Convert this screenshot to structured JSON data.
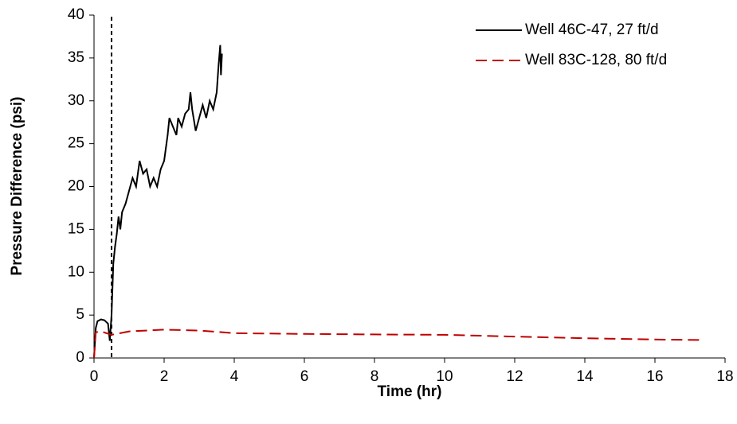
{
  "chart_data": {
    "type": "line",
    "xlabel": "Time (hr)",
    "ylabel": "Pressure Difference (psi)",
    "xlim": [
      0,
      18
    ],
    "xticks": [
      0,
      2,
      4,
      6,
      8,
      10,
      12,
      14,
      16,
      18
    ],
    "ylim": [
      0,
      40
    ],
    "yticks": [
      0,
      5,
      10,
      15,
      20,
      25,
      30,
      35,
      40
    ],
    "grid": false,
    "legend": "top-right",
    "reference_line_x": 0.5,
    "series": [
      {
        "name": "Well 46C-47, 27 ft/d",
        "color": "#000000",
        "dash": "solid",
        "x": [
          0,
          0.05,
          0.1,
          0.2,
          0.3,
          0.4,
          0.45,
          0.5,
          0.55,
          0.6,
          0.65,
          0.7,
          0.75,
          0.8,
          0.9,
          1.0,
          1.1,
          1.2,
          1.3,
          1.4,
          1.5,
          1.6,
          1.7,
          1.8,
          1.9,
          2.0,
          2.1,
          2.15,
          2.25,
          2.35,
          2.4,
          2.5,
          2.6,
          2.7,
          2.75,
          2.8,
          2.9,
          3.0,
          3.1,
          3.2,
          3.3,
          3.4,
          3.5,
          3.55,
          3.6,
          3.62,
          3.65
        ],
        "values": [
          0,
          3.5,
          4.3,
          4.5,
          4.4,
          4.0,
          2,
          5,
          11,
          13,
          14.5,
          16.5,
          15,
          17,
          18,
          19.5,
          21,
          20,
          23,
          21.5,
          22,
          20,
          21,
          20,
          22,
          23,
          26,
          28,
          27,
          26,
          28,
          27,
          28.5,
          29,
          31,
          29,
          26.5,
          28,
          29.5,
          28,
          30,
          29,
          31,
          34,
          36.5,
          33,
          35.5
        ]
      },
      {
        "name": "Well 83C-128, 80 ft/d",
        "color": "#c00000",
        "dash": "dashed",
        "x": [
          0,
          0.05,
          0.2,
          0.5,
          1,
          2,
          3,
          4,
          6,
          8,
          10,
          12,
          14,
          16,
          17.3
        ],
        "values": [
          0,
          3,
          3.1,
          2.7,
          3.1,
          3.3,
          3.2,
          2.9,
          2.8,
          2.75,
          2.7,
          2.5,
          2.3,
          2.15,
          2.1
        ]
      }
    ]
  }
}
